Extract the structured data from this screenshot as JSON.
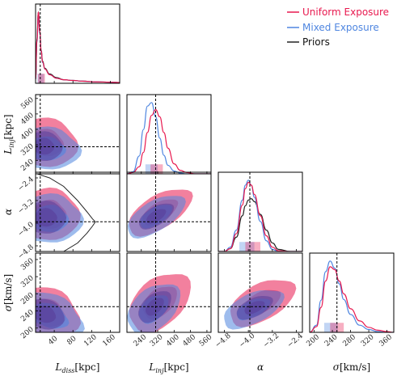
{
  "colors": {
    "uniform": "#e8194f",
    "mixed": "#4f86e0",
    "priors": "#222222",
    "overlap": "#5a3e9a",
    "truth_line": "#000000"
  },
  "legend": [
    {
      "label": "Uniform Exposure",
      "color": "#e8194f"
    },
    {
      "label": "Mixed Exposure",
      "color": "#4f86e0"
    },
    {
      "label": "Priors",
      "color": "#222222"
    }
  ],
  "chart_data": {
    "type": "corner",
    "parameters": [
      {
        "key": "ldiss",
        "label": "L_diss[kpc]",
        "label_tex": "L",
        "label_sub": "diss",
        "label_unit": "[kpc]",
        "range": [
          0,
          180
        ],
        "ticks": [
          40,
          80,
          120,
          160
        ],
        "truth": 10
      },
      {
        "key": "linj",
        "label": "L_inj[kpc]",
        "label_tex": "L",
        "label_sub": "inj",
        "label_unit": "[kpc]",
        "range": [
          170,
          580
        ],
        "ticks": [
          240,
          320,
          400,
          480,
          560
        ],
        "truth": 310
      },
      {
        "key": "alpha",
        "label": "α",
        "label_tex": "α",
        "label_sub": "",
        "label_unit": "",
        "range": [
          -5.0,
          -2.2
        ],
        "ticks": [
          -4.8,
          -4.0,
          -3.2,
          -2.4
        ],
        "truth": -3.95,
        "ytick_labels": [
          "−2.4",
          "−3.2",
          "−4.0",
          "−4.8"
        ],
        "ytick_values": [
          -2.4,
          -3.2,
          -4.0,
          -4.8
        ]
      },
      {
        "key": "sigma",
        "label": "σ[km/s]",
        "label_tex": "σ",
        "label_sub": "",
        "label_unit": "[km/s]",
        "range": [
          190,
          375
        ],
        "ticks": [
          200,
          240,
          280,
          320,
          360
        ],
        "truth": 250
      }
    ],
    "marginals": {
      "ldiss": {
        "x": [
          0,
          3,
          6,
          9,
          12,
          15,
          20,
          30,
          45,
          60,
          80,
          100,
          130,
          160,
          180
        ],
        "uniform": [
          0.05,
          0.6,
          1.0,
          0.72,
          0.45,
          0.3,
          0.2,
          0.12,
          0.07,
          0.05,
          0.04,
          0.03,
          0.02,
          0.015,
          0.01
        ],
        "mixed": [
          0.05,
          0.58,
          0.98,
          0.7,
          0.44,
          0.29,
          0.2,
          0.12,
          0.07,
          0.05,
          0.04,
          0.03,
          0.02,
          0.015,
          0.01
        ],
        "priors": [
          0.05,
          0.62,
          1.0,
          0.73,
          0.46,
          0.31,
          0.21,
          0.13,
          0.08,
          0.05,
          0.04,
          0.03,
          0.02,
          0.015,
          0.01
        ],
        "band_uniform": [
          5,
          20
        ],
        "band_mixed": [
          4,
          18
        ]
      },
      "linj": {
        "x": [
          170,
          200,
          230,
          250,
          270,
          290,
          310,
          330,
          350,
          370,
          400,
          430,
          460,
          500,
          580
        ],
        "uniform": [
          0.0,
          0.02,
          0.1,
          0.3,
          0.58,
          0.82,
          0.9,
          0.8,
          0.58,
          0.36,
          0.14,
          0.05,
          0.02,
          0.0,
          0.0
        ],
        "mixed": [
          0.0,
          0.03,
          0.25,
          0.62,
          0.95,
          1.0,
          0.8,
          0.5,
          0.26,
          0.12,
          0.04,
          0.01,
          0.0,
          0.0,
          0.0
        ],
        "band_uniform": [
          285,
          345
        ],
        "band_mixed": [
          260,
          320
        ]
      },
      "alpha": {
        "x": [
          -5.0,
          -4.8,
          -4.6,
          -4.4,
          -4.2,
          -4.1,
          -4.0,
          -3.9,
          -3.8,
          -3.6,
          -3.4,
          -3.2,
          -3.0,
          -2.6,
          -2.2
        ],
        "uniform": [
          0.0,
          0.0,
          0.04,
          0.25,
          0.65,
          0.88,
          0.97,
          0.93,
          0.8,
          0.5,
          0.22,
          0.06,
          0.01,
          0.0,
          0.0
        ],
        "mixed": [
          0.0,
          0.0,
          0.06,
          0.3,
          0.72,
          0.93,
          1.0,
          0.93,
          0.76,
          0.42,
          0.15,
          0.03,
          0.0,
          0.0,
          0.0
        ],
        "priors": [
          0.0,
          0.0,
          0.04,
          0.2,
          0.5,
          0.64,
          0.72,
          0.74,
          0.7,
          0.52,
          0.3,
          0.12,
          0.03,
          0.0,
          0.0
        ],
        "band_uniform": [
          -4.1,
          -3.6
        ],
        "band_mixed": [
          -4.3,
          -3.8
        ]
      },
      "sigma": {
        "x": [
          190,
          205,
          215,
          225,
          235,
          245,
          255,
          265,
          280,
          300,
          320,
          340,
          360,
          375
        ],
        "uniform": [
          0.0,
          0.08,
          0.35,
          0.72,
          0.92,
          0.88,
          0.72,
          0.54,
          0.33,
          0.16,
          0.07,
          0.03,
          0.01,
          0.0
        ],
        "mixed": [
          0.0,
          0.1,
          0.45,
          0.85,
          1.0,
          0.9,
          0.68,
          0.46,
          0.25,
          0.1,
          0.04,
          0.01,
          0.0,
          0.0
        ],
        "band_uniform": [
          235,
          265
        ],
        "band_mixed": [
          222,
          252
        ]
      }
    },
    "prior_contour_ldiss_alpha": {
      "x": [
        2,
        30,
        60,
        90,
        110,
        122,
        128,
        122,
        110,
        90,
        60,
        30,
        2
      ],
      "y": [
        -2.25,
        -2.4,
        -2.7,
        -3.2,
        -3.6,
        -3.85,
        -3.95,
        -4.1,
        -4.35,
        -4.7,
        -5.0,
        -5.2,
        -5.3
      ]
    }
  }
}
